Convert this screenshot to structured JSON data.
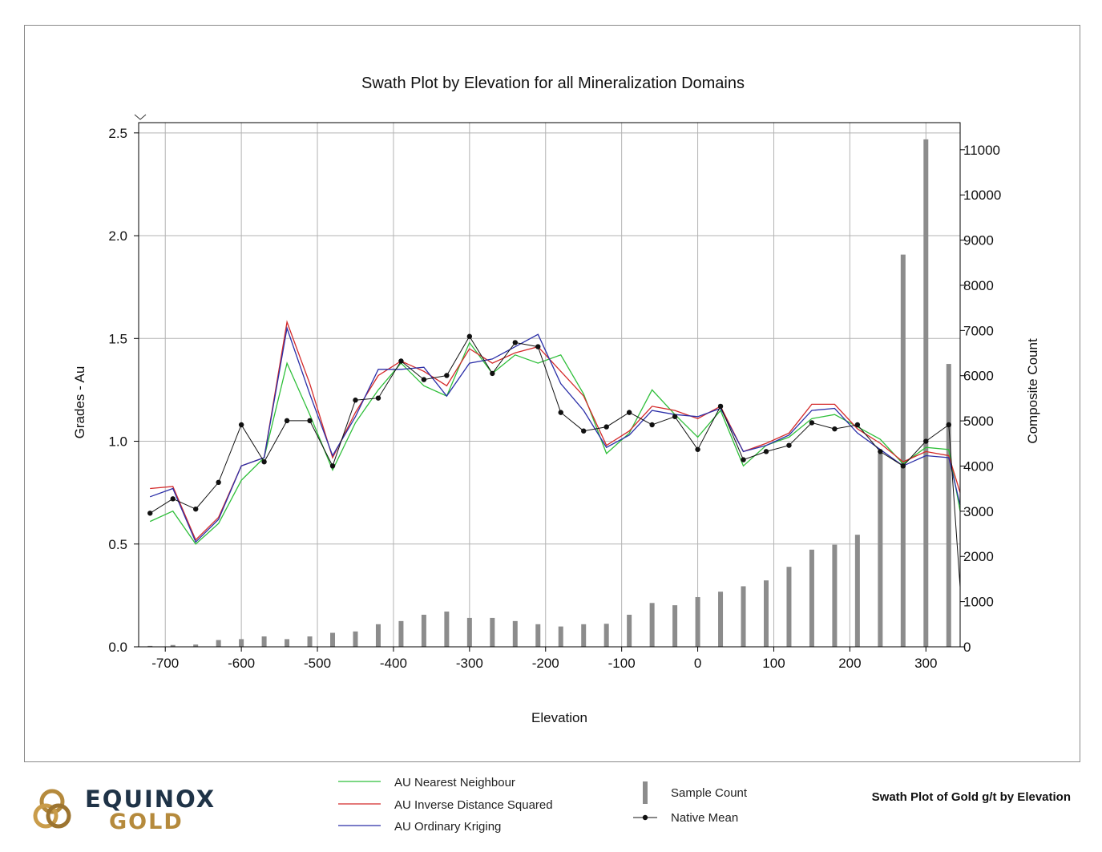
{
  "colors": {
    "nn": "#2fbf3a",
    "ids": "#d42a2a",
    "ok": "#2b2fa8",
    "mean": "#111111",
    "bars": "#8c8c8c",
    "grid": "#b3b3b3",
    "logo_dark": "#1f3347",
    "logo_gold": "#b58a3c"
  },
  "chart_data": {
    "type": "line",
    "title": "Swath Plot by Elevation for all Mineralization Domains",
    "xlabel": "Elevation",
    "ylabel": "Grades - Au",
    "y2label": "Composite Count",
    "xlim": [
      -735,
      345
    ],
    "ylim": [
      0,
      2.55
    ],
    "y2lim": [
      0,
      11600
    ],
    "xticks": [
      "-700",
      "-600",
      "-500",
      "-400",
      "-300",
      "-200",
      "-100",
      "0",
      "100",
      "200",
      "300"
    ],
    "xtick_values": [
      -700,
      -600,
      -500,
      -400,
      -300,
      -200,
      -100,
      0,
      100,
      200,
      300
    ],
    "yticks": [
      "0.0",
      "0.5",
      "1.0",
      "1.5",
      "2.0",
      "2.5"
    ],
    "ytick_values": [
      0,
      0.5,
      1.0,
      1.5,
      2.0,
      2.5
    ],
    "y2ticks": [
      "0",
      "1000",
      "2000",
      "3000",
      "4000",
      "5000",
      "6000",
      "7000",
      "8000",
      "9000",
      "10000",
      "11000"
    ],
    "y2tick_values": [
      0,
      1000,
      2000,
      3000,
      4000,
      5000,
      6000,
      7000,
      8000,
      9000,
      10000,
      11000
    ],
    "x": [
      -720,
      -690,
      -660,
      -630,
      -600,
      -570,
      -540,
      -510,
      -480,
      -450,
      -420,
      -390,
      -360,
      -330,
      -300,
      -270,
      -240,
      -210,
      -180,
      -150,
      -120,
      -90,
      -60,
      -30,
      0,
      30,
      60,
      90,
      120,
      150,
      180,
      210,
      240,
      270,
      300,
      330,
      345
    ],
    "series": [
      {
        "name": "AU Nearest Neighbour",
        "color_key": "nn",
        "values": [
          0.61,
          0.66,
          0.5,
          0.6,
          0.81,
          0.92,
          1.38,
          1.13,
          0.86,
          1.09,
          1.25,
          1.38,
          1.27,
          1.22,
          1.48,
          1.33,
          1.42,
          1.38,
          1.42,
          1.23,
          0.94,
          1.04,
          1.25,
          1.13,
          1.02,
          1.15,
          0.88,
          0.98,
          1.02,
          1.11,
          1.13,
          1.07,
          1.01,
          0.89,
          0.97,
          0.96,
          0.66
        ]
      },
      {
        "name": "AU Inverse Distance Squared",
        "color_key": "ids",
        "values": [
          0.77,
          0.78,
          0.52,
          0.63,
          0.88,
          0.92,
          1.58,
          1.28,
          0.92,
          1.14,
          1.32,
          1.39,
          1.34,
          1.27,
          1.45,
          1.38,
          1.43,
          1.46,
          1.34,
          1.22,
          0.98,
          1.05,
          1.17,
          1.15,
          1.11,
          1.17,
          0.95,
          0.99,
          1.04,
          1.18,
          1.18,
          1.06,
          0.99,
          0.9,
          0.95,
          0.93,
          0.75
        ]
      },
      {
        "name": "AU Ordinary Kriging",
        "color_key": "ok",
        "values": [
          0.73,
          0.77,
          0.51,
          0.62,
          0.88,
          0.92,
          1.55,
          1.23,
          0.93,
          1.12,
          1.35,
          1.35,
          1.36,
          1.22,
          1.38,
          1.4,
          1.46,
          1.52,
          1.28,
          1.15,
          0.97,
          1.03,
          1.15,
          1.13,
          1.12,
          1.16,
          0.95,
          0.98,
          1.03,
          1.15,
          1.16,
          1.04,
          0.96,
          0.88,
          0.93,
          0.92,
          0.69
        ]
      }
    ],
    "native_mean": {
      "name": "Native Mean",
      "color_key": "mean",
      "values": [
        0.65,
        0.72,
        0.67,
        0.8,
        1.08,
        0.9,
        1.1,
        1.1,
        0.88,
        1.2,
        1.21,
        1.39,
        1.3,
        1.32,
        1.51,
        1.33,
        1.48,
        1.46,
        1.14,
        1.05,
        1.07,
        1.14,
        1.08,
        1.12,
        0.96,
        1.17,
        0.91,
        0.95,
        0.98,
        1.09,
        1.06,
        1.08,
        0.95,
        0.88,
        1.0,
        1.08,
        0.29
      ]
    },
    "sample_count": {
      "name": "Sample Count",
      "x": [
        -720,
        -690,
        -660,
        -630,
        -600,
        -570,
        -540,
        -510,
        -480,
        -450,
        -420,
        -390,
        -360,
        -330,
        -300,
        -270,
        -240,
        -210,
        -180,
        -150,
        -120,
        -90,
        -60,
        -30,
        0,
        30,
        60,
        90,
        120,
        150,
        180,
        210,
        240,
        270,
        300,
        330
      ],
      "values": [
        20,
        40,
        50,
        150,
        170,
        230,
        170,
        230,
        310,
        340,
        500,
        570,
        710,
        780,
        640,
        640,
        570,
        500,
        450,
        500,
        510,
        710,
        970,
        920,
        1100,
        1220,
        1340,
        1470,
        1770,
        2150,
        2260,
        2480,
        4280,
        8680,
        11230,
        6260
      ]
    }
  },
  "legend": {
    "nn": "AU Nearest Neighbour",
    "ids": "AU Inverse Distance Squared",
    "ok": "AU Ordinary Kriging",
    "sample_count": "Sample Count",
    "native_mean": "Native Mean"
  },
  "footer": {
    "logo_word1": "EQUINOX",
    "logo_word2": "GOLD",
    "caption": "Swath Plot of Gold g/t by Elevation"
  }
}
